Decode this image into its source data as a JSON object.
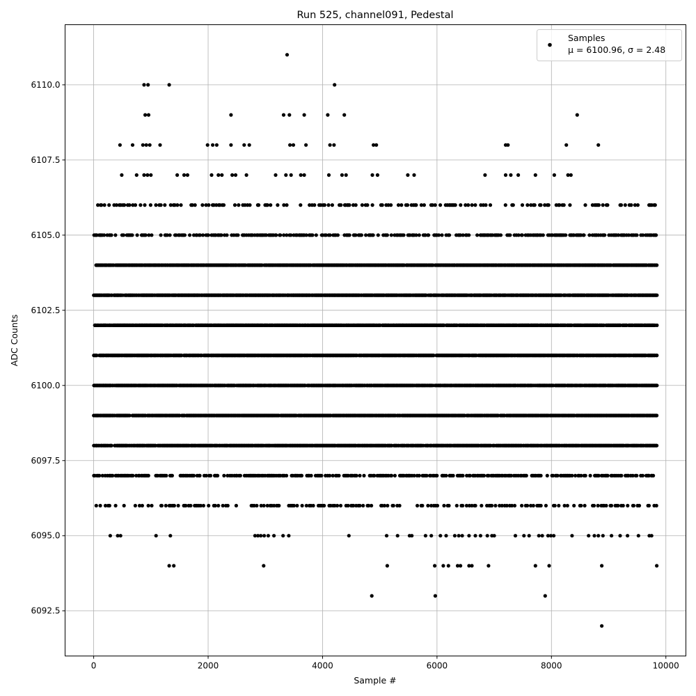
{
  "chart_data": {
    "type": "scatter",
    "title": "Run 525, channel091, Pedestal",
    "xlabel": "Sample #",
    "ylabel": "ADC Counts",
    "xlim": [
      -500,
      10350
    ],
    "ylim": [
      6091.0,
      6112.0
    ],
    "xticks": [
      0,
      2000,
      4000,
      6000,
      8000,
      10000
    ],
    "xtick_labels": [
      "0",
      "2000",
      "4000",
      "6000",
      "8000",
      "10000"
    ],
    "yticks": [
      6092.5,
      6095.0,
      6097.5,
      6100.0,
      6102.5,
      6105.0,
      6107.5,
      6110.0
    ],
    "ytick_labels": [
      "6092.5",
      "6095.0",
      "6097.5",
      "6100.0",
      "6102.5",
      "6105.0",
      "6107.5",
      "6110.0"
    ],
    "grid": true,
    "legend": {
      "position": "top-right",
      "entries": [
        {
          "label_line1": "Samples",
          "label_line2": "μ = 6100.96, σ = 2.48",
          "marker": "circle",
          "color": "#000000"
        }
      ]
    },
    "marker_color": "#000000",
    "series": [
      {
        "name": "Samples",
        "x_range": [
          0,
          9850
        ],
        "dense_levels": [
          6098,
          6099,
          6100,
          6101,
          6102,
          6103,
          6104
        ],
        "medium_levels": [
          6097,
          6105
        ],
        "sparse_levels": [
          6096,
          6106
        ],
        "points": [
          {
            "x": 3380,
            "y": 6111
          },
          {
            "x": 4210,
            "y": 6110
          },
          {
            "x": 1320,
            "y": 6110
          },
          {
            "x": 880,
            "y": 6110
          },
          {
            "x": 950,
            "y": 6110
          },
          {
            "x": 8880,
            "y": 6092
          },
          {
            "x": 4860,
            "y": 6093
          },
          {
            "x": 5970,
            "y": 6093
          },
          {
            "x": 7890,
            "y": 6093
          },
          {
            "x": 900,
            "y": 6109
          },
          {
            "x": 960,
            "y": 6109
          },
          {
            "x": 2400,
            "y": 6109
          },
          {
            "x": 3320,
            "y": 6109
          },
          {
            "x": 3420,
            "y": 6109
          },
          {
            "x": 3680,
            "y": 6109
          },
          {
            "x": 4090,
            "y": 6109
          },
          {
            "x": 4380,
            "y": 6109
          },
          {
            "x": 8450,
            "y": 6109
          },
          {
            "x": 460,
            "y": 6108
          },
          {
            "x": 680,
            "y": 6108
          },
          {
            "x": 860,
            "y": 6108
          },
          {
            "x": 920,
            "y": 6108
          },
          {
            "x": 980,
            "y": 6108
          },
          {
            "x": 1160,
            "y": 6108
          },
          {
            "x": 1990,
            "y": 6108
          },
          {
            "x": 2080,
            "y": 6108
          },
          {
            "x": 2150,
            "y": 6108
          },
          {
            "x": 2400,
            "y": 6108
          },
          {
            "x": 2630,
            "y": 6108
          },
          {
            "x": 2720,
            "y": 6108
          },
          {
            "x": 3430,
            "y": 6108
          },
          {
            "x": 3490,
            "y": 6108
          },
          {
            "x": 3710,
            "y": 6108
          },
          {
            "x": 4130,
            "y": 6108
          },
          {
            "x": 4200,
            "y": 6108
          },
          {
            "x": 4890,
            "y": 6108
          },
          {
            "x": 4940,
            "y": 6108
          },
          {
            "x": 7200,
            "y": 6108
          },
          {
            "x": 7240,
            "y": 6108
          },
          {
            "x": 8260,
            "y": 6108
          },
          {
            "x": 8820,
            "y": 6108
          },
          {
            "x": 490,
            "y": 6107
          },
          {
            "x": 750,
            "y": 6107
          },
          {
            "x": 880,
            "y": 6107
          },
          {
            "x": 940,
            "y": 6107
          },
          {
            "x": 1000,
            "y": 6107
          },
          {
            "x": 1460,
            "y": 6107
          },
          {
            "x": 1580,
            "y": 6107
          },
          {
            "x": 1640,
            "y": 6107
          },
          {
            "x": 2060,
            "y": 6107
          },
          {
            "x": 2180,
            "y": 6107
          },
          {
            "x": 2240,
            "y": 6107
          },
          {
            "x": 2420,
            "y": 6107
          },
          {
            "x": 2480,
            "y": 6107
          },
          {
            "x": 2670,
            "y": 6107
          },
          {
            "x": 3180,
            "y": 6107
          },
          {
            "x": 3360,
            "y": 6107
          },
          {
            "x": 3450,
            "y": 6107
          },
          {
            "x": 3620,
            "y": 6107
          },
          {
            "x": 3680,
            "y": 6107
          },
          {
            "x": 4110,
            "y": 6107
          },
          {
            "x": 4340,
            "y": 6107
          },
          {
            "x": 4410,
            "y": 6107
          },
          {
            "x": 4870,
            "y": 6107
          },
          {
            "x": 4960,
            "y": 6107
          },
          {
            "x": 5490,
            "y": 6107
          },
          {
            "x": 5600,
            "y": 6107
          },
          {
            "x": 6840,
            "y": 6107
          },
          {
            "x": 7200,
            "y": 6107
          },
          {
            "x": 7290,
            "y": 6107
          },
          {
            "x": 7420,
            "y": 6107
          },
          {
            "x": 7720,
            "y": 6107
          },
          {
            "x": 8050,
            "y": 6107
          },
          {
            "x": 8290,
            "y": 6107
          },
          {
            "x": 8340,
            "y": 6107
          },
          {
            "x": 2970,
            "y": 6094
          },
          {
            "x": 1320,
            "y": 6094
          },
          {
            "x": 1400,
            "y": 6094
          },
          {
            "x": 5130,
            "y": 6094
          },
          {
            "x": 5960,
            "y": 6094
          },
          {
            "x": 6110,
            "y": 6094
          },
          {
            "x": 6200,
            "y": 6094
          },
          {
            "x": 6360,
            "y": 6094
          },
          {
            "x": 6410,
            "y": 6094
          },
          {
            "x": 6560,
            "y": 6094
          },
          {
            "x": 6610,
            "y": 6094
          },
          {
            "x": 6900,
            "y": 6094
          },
          {
            "x": 7720,
            "y": 6094
          },
          {
            "x": 7960,
            "y": 6094
          },
          {
            "x": 8880,
            "y": 6094
          },
          {
            "x": 9840,
            "y": 6094
          },
          {
            "x": 290,
            "y": 6095
          },
          {
            "x": 420,
            "y": 6095
          },
          {
            "x": 470,
            "y": 6095
          },
          {
            "x": 1090,
            "y": 6095
          },
          {
            "x": 1340,
            "y": 6095
          },
          {
            "x": 2820,
            "y": 6095
          },
          {
            "x": 2870,
            "y": 6095
          },
          {
            "x": 2920,
            "y": 6095
          },
          {
            "x": 2980,
            "y": 6095
          },
          {
            "x": 3050,
            "y": 6095
          },
          {
            "x": 3150,
            "y": 6095
          },
          {
            "x": 3310,
            "y": 6095
          },
          {
            "x": 3410,
            "y": 6095
          },
          {
            "x": 4460,
            "y": 6095
          },
          {
            "x": 5120,
            "y": 6095
          },
          {
            "x": 5310,
            "y": 6095
          },
          {
            "x": 5520,
            "y": 6095
          },
          {
            "x": 5560,
            "y": 6095
          },
          {
            "x": 5800,
            "y": 6095
          },
          {
            "x": 5900,
            "y": 6095
          },
          {
            "x": 6060,
            "y": 6095
          },
          {
            "x": 6160,
            "y": 6095
          },
          {
            "x": 6310,
            "y": 6095
          },
          {
            "x": 6380,
            "y": 6095
          },
          {
            "x": 6440,
            "y": 6095
          },
          {
            "x": 6560,
            "y": 6095
          },
          {
            "x": 6670,
            "y": 6095
          },
          {
            "x": 6760,
            "y": 6095
          },
          {
            "x": 6880,
            "y": 6095
          },
          {
            "x": 6960,
            "y": 6095
          },
          {
            "x": 7000,
            "y": 6095
          },
          {
            "x": 7370,
            "y": 6095
          },
          {
            "x": 7520,
            "y": 6095
          },
          {
            "x": 7610,
            "y": 6095
          },
          {
            "x": 7780,
            "y": 6095
          },
          {
            "x": 7840,
            "y": 6095
          },
          {
            "x": 7940,
            "y": 6095
          },
          {
            "x": 7990,
            "y": 6095
          },
          {
            "x": 8040,
            "y": 6095
          },
          {
            "x": 8360,
            "y": 6095
          },
          {
            "x": 8650,
            "y": 6095
          },
          {
            "x": 8750,
            "y": 6095
          },
          {
            "x": 8820,
            "y": 6095
          },
          {
            "x": 8900,
            "y": 6095
          },
          {
            "x": 9050,
            "y": 6095
          },
          {
            "x": 9200,
            "y": 6095
          },
          {
            "x": 9330,
            "y": 6095
          },
          {
            "x": 9520,
            "y": 6095
          },
          {
            "x": 9710,
            "y": 6095
          },
          {
            "x": 9750,
            "y": 6095
          }
        ]
      }
    ]
  }
}
